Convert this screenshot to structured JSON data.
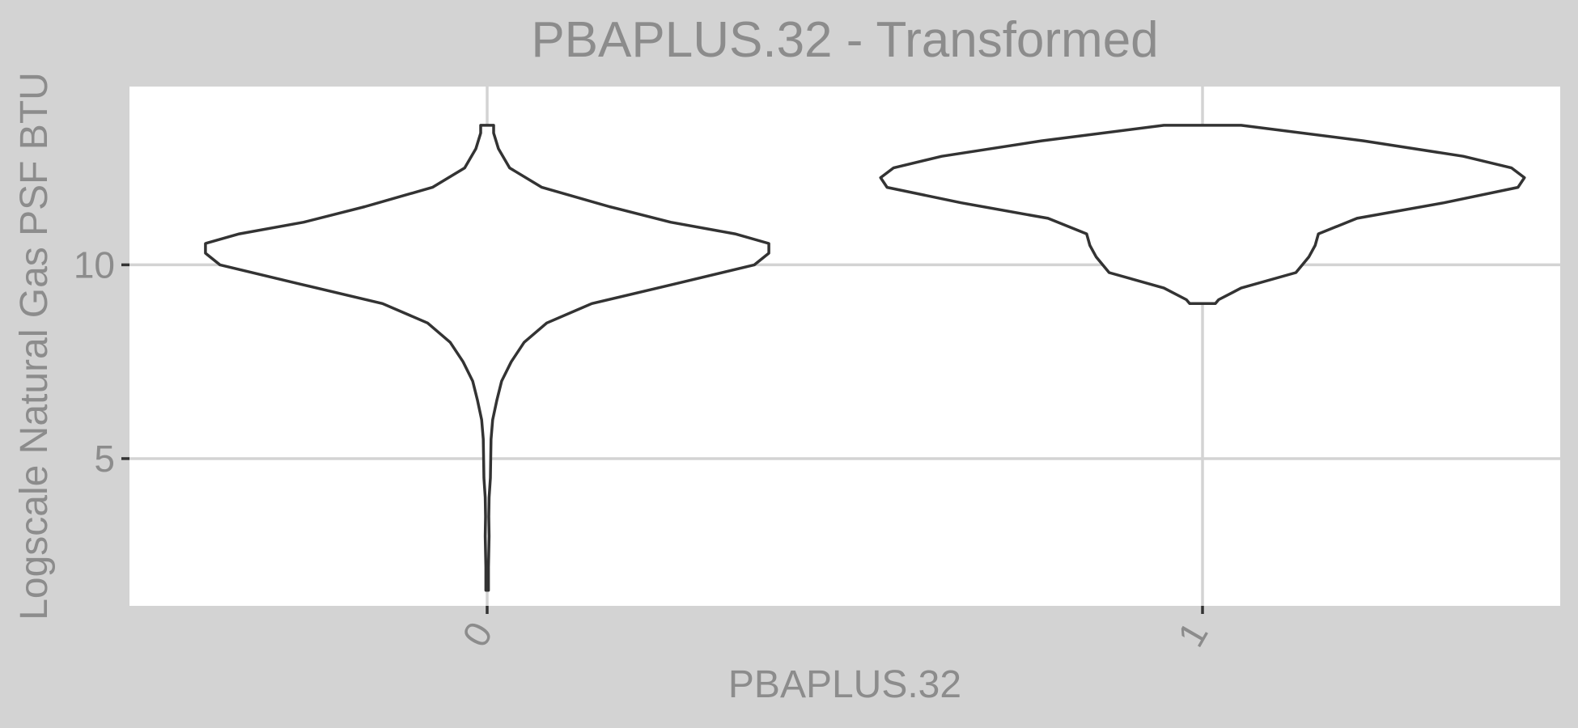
{
  "chart_data": {
    "type": "violin",
    "title": "PBAPLUS.32 - Transformed",
    "xlabel": "PBAPLUS.32",
    "ylabel": "Logscale Natural Gas PSF BTU",
    "categories": [
      "0",
      "1"
    ],
    "yticks": [
      5,
      10
    ],
    "ylim": [
      1.2,
      14.6
    ],
    "grid": true,
    "legend": "none",
    "colors": {
      "background": "#d3d3d3",
      "panel": "#ffffff",
      "grid": "#d3d3d3",
      "outline": "#333333",
      "text": "#8c8c8c"
    },
    "series": [
      {
        "category": "0",
        "profile": [
          [
            1.6,
            0.004
          ],
          [
            2.2,
            0.004
          ],
          [
            3.0,
            0.006
          ],
          [
            3.5,
            0.005
          ],
          [
            4.0,
            0.006
          ],
          [
            4.5,
            0.01
          ],
          [
            5.0,
            0.011
          ],
          [
            5.5,
            0.012
          ],
          [
            6.0,
            0.017
          ],
          [
            6.5,
            0.03
          ],
          [
            7.0,
            0.045
          ],
          [
            7.5,
            0.075
          ],
          [
            8.0,
            0.115
          ],
          [
            8.5,
            0.185
          ],
          [
            9.0,
            0.325
          ],
          [
            9.5,
            0.58
          ],
          [
            10.0,
            0.83
          ],
          [
            10.3,
            0.875
          ],
          [
            10.55,
            0.875
          ],
          [
            10.8,
            0.77
          ],
          [
            11.1,
            0.57
          ],
          [
            11.5,
            0.38
          ],
          [
            12.0,
            0.17
          ],
          [
            12.5,
            0.07
          ],
          [
            13.0,
            0.035
          ],
          [
            13.4,
            0.02
          ],
          [
            13.6,
            0.02
          ]
        ]
      },
      {
        "category": "1",
        "profile": [
          [
            9.0,
            0.04
          ],
          [
            9.1,
            0.05
          ],
          [
            9.4,
            0.12
          ],
          [
            9.8,
            0.29
          ],
          [
            10.2,
            0.33
          ],
          [
            10.5,
            0.35
          ],
          [
            10.8,
            0.36
          ],
          [
            11.2,
            0.48
          ],
          [
            11.6,
            0.75
          ],
          [
            12.0,
            0.98
          ],
          [
            12.25,
            1.0
          ],
          [
            12.5,
            0.96
          ],
          [
            12.8,
            0.81
          ],
          [
            13.2,
            0.5
          ],
          [
            13.6,
            0.12
          ]
        ]
      }
    ]
  }
}
